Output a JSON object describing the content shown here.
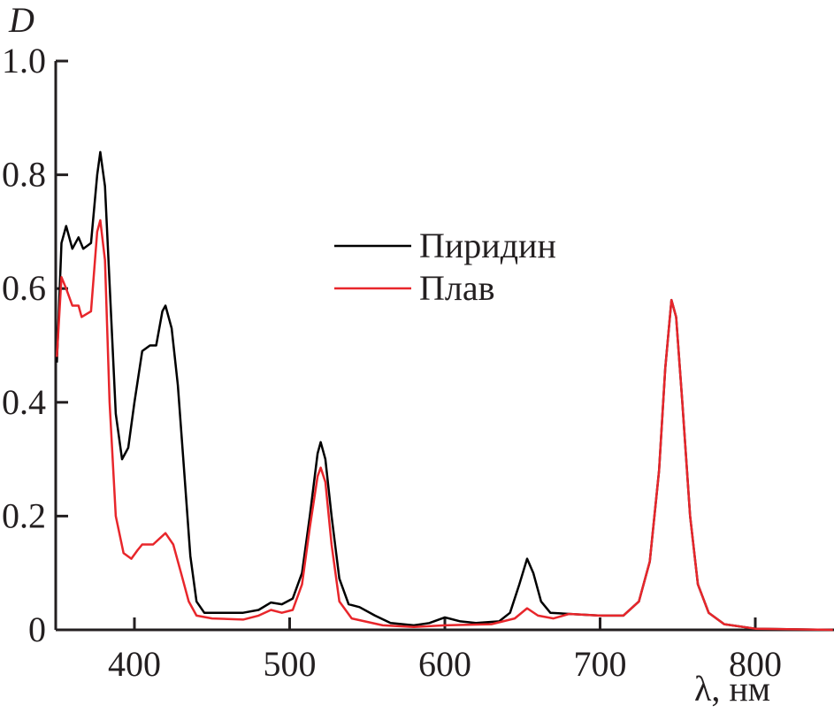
{
  "chart_data": {
    "type": "line",
    "xlabel": "λ, нм",
    "ylabel": "D",
    "xlim": [
      350,
      850
    ],
    "ylim": [
      0,
      1.0
    ],
    "xticks": [
      400,
      500,
      600,
      700,
      800
    ],
    "yticks": [
      0,
      0.2,
      0.4,
      0.6,
      0.8,
      1.0
    ],
    "ytick_labels": [
      "0",
      "0.2",
      "0.4",
      "0.6",
      "0.8",
      "1.0"
    ],
    "grid": false,
    "legend_placement": "center",
    "series": [
      {
        "name": "Пиридин",
        "color": "#000000",
        "x": [
          350,
          353,
          356,
          360,
          364,
          367,
          372,
          376,
          378,
          381,
          385,
          388,
          392,
          396,
          400,
          405,
          410,
          414,
          418,
          420,
          424,
          428,
          432,
          436,
          440,
          445,
          460,
          470,
          480,
          488,
          495,
          502,
          508,
          513,
          518,
          520,
          523,
          527,
          532,
          538,
          545,
          555,
          565,
          580,
          590,
          600,
          610,
          620,
          635,
          642,
          648,
          653,
          657,
          662,
          668,
          680,
          700,
          715,
          725,
          732,
          738,
          742,
          746,
          749,
          753,
          758,
          763,
          770,
          780,
          800,
          850
        ],
        "y": [
          0.47,
          0.68,
          0.71,
          0.67,
          0.69,
          0.67,
          0.68,
          0.8,
          0.84,
          0.78,
          0.55,
          0.38,
          0.3,
          0.32,
          0.4,
          0.49,
          0.5,
          0.5,
          0.56,
          0.57,
          0.53,
          0.43,
          0.28,
          0.13,
          0.05,
          0.03,
          0.03,
          0.03,
          0.035,
          0.048,
          0.045,
          0.055,
          0.1,
          0.2,
          0.31,
          0.33,
          0.3,
          0.2,
          0.09,
          0.045,
          0.04,
          0.025,
          0.012,
          0.008,
          0.012,
          0.022,
          0.015,
          0.012,
          0.015,
          0.03,
          0.08,
          0.125,
          0.1,
          0.05,
          0.03,
          0.028,
          0.025,
          0.025,
          0.05,
          0.12,
          0.28,
          0.46,
          0.58,
          0.55,
          0.4,
          0.2,
          0.08,
          0.03,
          0.01,
          0.002,
          0
        ]
      },
      {
        "name": "Плав",
        "color": "#e8262b",
        "x": [
          350,
          353,
          356,
          360,
          364,
          366,
          372,
          376,
          378,
          381,
          384,
          388,
          393,
          398,
          402,
          405,
          412,
          416,
          420,
          425,
          430,
          435,
          440,
          450,
          470,
          480,
          488,
          495,
          502,
          508,
          513,
          518,
          520,
          523,
          527,
          532,
          540,
          560,
          580,
          600,
          630,
          645,
          653,
          660,
          670,
          680,
          700,
          715,
          725,
          732,
          738,
          742,
          746,
          749,
          753,
          758,
          763,
          770,
          780,
          800,
          850
        ],
        "y": [
          0.48,
          0.62,
          0.6,
          0.57,
          0.57,
          0.55,
          0.56,
          0.7,
          0.72,
          0.65,
          0.4,
          0.2,
          0.135,
          0.125,
          0.14,
          0.15,
          0.15,
          0.16,
          0.17,
          0.15,
          0.1,
          0.05,
          0.025,
          0.02,
          0.018,
          0.025,
          0.035,
          0.03,
          0.035,
          0.08,
          0.18,
          0.27,
          0.285,
          0.26,
          0.15,
          0.05,
          0.02,
          0.008,
          0.005,
          0.008,
          0.01,
          0.02,
          0.038,
          0.025,
          0.02,
          0.028,
          0.025,
          0.025,
          0.05,
          0.12,
          0.28,
          0.46,
          0.58,
          0.55,
          0.4,
          0.2,
          0.08,
          0.03,
          0.01,
          0.002,
          0
        ]
      }
    ]
  }
}
